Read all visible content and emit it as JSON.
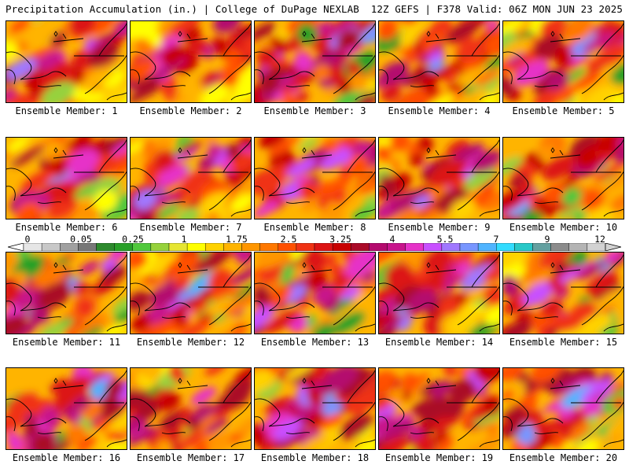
{
  "header": {
    "title_left": "Precipitation Accumulation (in.) | College of DuPage NEXLAB",
    "title_right": "12Z GEFS | F378 Valid: 06Z MON JUN 23 2025"
  },
  "panels": [
    {
      "label": "Ensemble Member: 1"
    },
    {
      "label": "Ensemble Member: 2"
    },
    {
      "label": "Ensemble Member: 3"
    },
    {
      "label": "Ensemble Member: 4"
    },
    {
      "label": "Ensemble Member: 5"
    },
    {
      "label": "Ensemble Member: 6"
    },
    {
      "label": "Ensemble Member: 7"
    },
    {
      "label": "Ensemble Member: 8"
    },
    {
      "label": "Ensemble Member: 9"
    },
    {
      "label": "Ensemble Member: 10"
    },
    {
      "label": "Ensemble Member: 11"
    },
    {
      "label": "Ensemble Member: 12"
    },
    {
      "label": "Ensemble Member: 13"
    },
    {
      "label": "Ensemble Member: 14"
    },
    {
      "label": "Ensemble Member: 15"
    },
    {
      "label": "Ensemble Member: 16"
    },
    {
      "label": "Ensemble Member: 17"
    },
    {
      "label": "Ensemble Member: 18"
    },
    {
      "label": "Ensemble Member: 19"
    },
    {
      "label": "Ensemble Member: 20"
    }
  ],
  "colorbar": {
    "tick_labels": [
      "0",
      "0.05",
      "0.25",
      "1",
      "1.75",
      "2.5",
      "3.25",
      "4",
      "5.5",
      "7",
      "9",
      "12"
    ],
    "colors": [
      "#e6e6e6",
      "#c8c8c8",
      "#a0a0a0",
      "#787878",
      "#2d8a2d",
      "#28a028",
      "#50c83c",
      "#96d23c",
      "#e6e632",
      "#ffff00",
      "#ffd200",
      "#ffb400",
      "#ff9600",
      "#ff7800",
      "#ff5000",
      "#f03214",
      "#dc1414",
      "#c80000",
      "#aa0a28",
      "#b40a6e",
      "#c8148c",
      "#e632c8",
      "#c850ff",
      "#a078ff",
      "#7896ff",
      "#50b4ff",
      "#32dcff",
      "#28c8c8",
      "#64a0a0",
      "#8c8c8c",
      "#b4b4b4",
      "#d2d2d2"
    ]
  }
}
